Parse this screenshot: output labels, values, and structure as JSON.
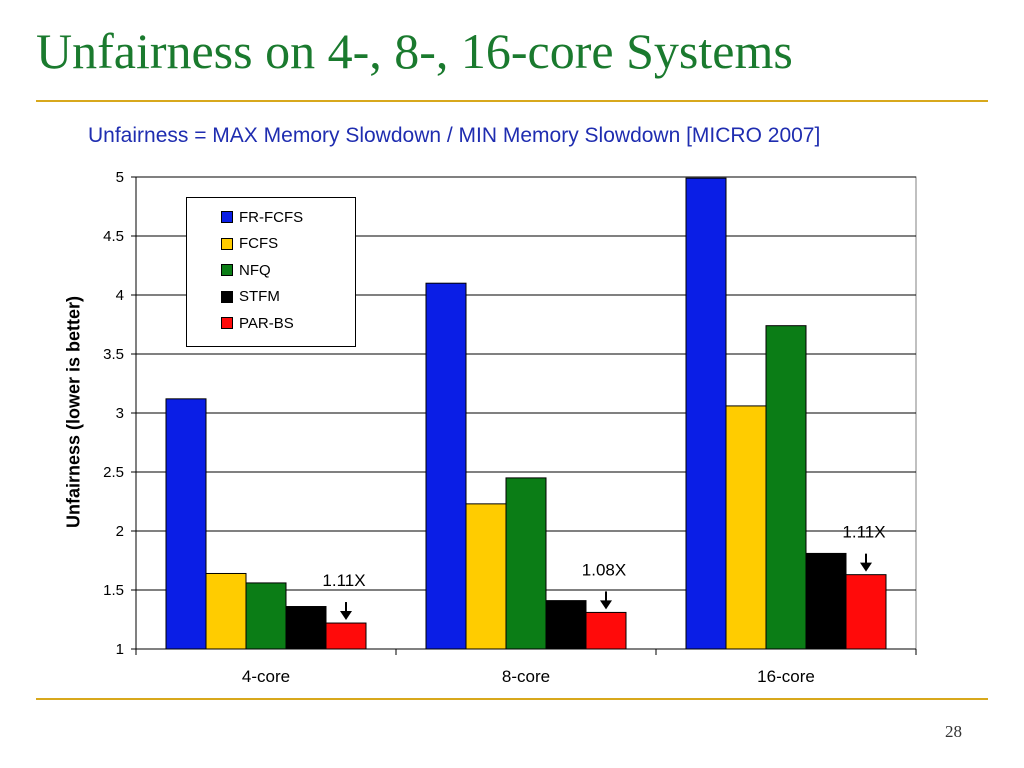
{
  "slide": {
    "title": "Unfairness on 4-, 8-, 16-core Systems",
    "subtitle": "Unfairness = MAX Memory Slowdown / MIN Memory Slowdown [MICRO 2007]",
    "page_number": "28"
  },
  "chart_data": {
    "type": "bar",
    "categories": [
      "4-core",
      "8-core",
      "16-core"
    ],
    "series": [
      {
        "name": "FR-FCFS",
        "color": "#0a1ee6",
        "values": [
          3.12,
          4.1,
          4.99
        ]
      },
      {
        "name": "FCFS",
        "color": "#ffcc00",
        "values": [
          1.64,
          2.23,
          3.06
        ]
      },
      {
        "name": "NFQ",
        "color": "#0b7d16",
        "values": [
          1.56,
          2.45,
          3.74
        ]
      },
      {
        "name": "STFM",
        "color": "#000000",
        "values": [
          1.36,
          1.41,
          1.81
        ]
      },
      {
        "name": "PAR-BS",
        "color": "#ff0a0a",
        "values": [
          1.22,
          1.31,
          1.63
        ]
      }
    ],
    "ylabel": "Unfairness (lower is better)",
    "ylim": [
      1,
      5
    ],
    "yticks": [
      "1",
      "1.5",
      "2",
      "2.5",
      "3",
      "3.5",
      "4",
      "4.5",
      "5"
    ],
    "grid": true,
    "legend_position": "top-left",
    "annotations": [
      {
        "category": "4-core",
        "text": "1.11X"
      },
      {
        "category": "8-core",
        "text": "1.08X"
      },
      {
        "category": "16-core",
        "text": "1.11X"
      }
    ]
  }
}
